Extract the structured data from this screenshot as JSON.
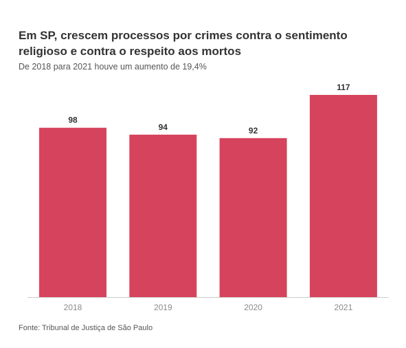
{
  "title": "Em SP, crescem processos por crimes contra o sentimento religioso e contra o respeito aos mortos",
  "subtitle": "De 2018 para 2021 houve um aumento de 19,4%",
  "source": "Fonte: Tribunal de Justiça de São Paulo",
  "colors": {
    "bar": "#d6435c",
    "axis": "#cccccc"
  },
  "chart_data": {
    "type": "bar",
    "categories": [
      "2018",
      "2019",
      "2020",
      "2021"
    ],
    "values": [
      98,
      94,
      92,
      117
    ],
    "title": "Em SP, crescem processos por crimes contra o sentimento religioso e contra o respeito aos mortos",
    "subtitle": "De 2018 para 2021 houve um aumento de 19,4%",
    "xlabel": "",
    "ylabel": "",
    "ylim": [
      0,
      117
    ],
    "grid": false,
    "data_labels": true
  }
}
